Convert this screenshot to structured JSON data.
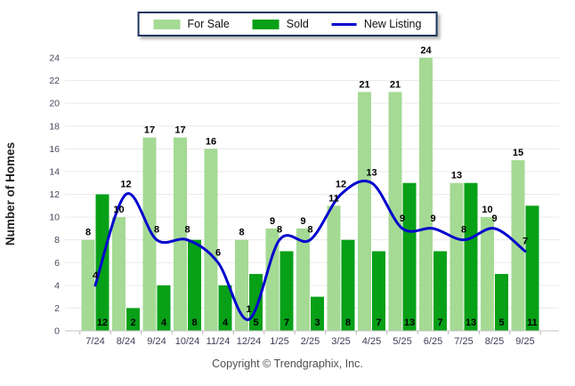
{
  "legend": {
    "items": [
      {
        "label": "For Sale",
        "swatch": "light-green-rect"
      },
      {
        "label": "Sold",
        "swatch": "dark-green-rect"
      },
      {
        "label": "New Listing",
        "swatch": "blue-line"
      }
    ]
  },
  "footer": {
    "copyright": "Copyright © Trendgraphix, Inc."
  },
  "colors": {
    "for_sale": "#a4da94",
    "sold": "#07a017",
    "new_listing": "#0101cd",
    "legend_border": "#1a355e",
    "grid": "#eaeaea",
    "axis": "#c4c4c4"
  },
  "chart_data": {
    "type": "bar",
    "title": "",
    "xlabel": "",
    "ylabel": "Number of Homes",
    "ylim": [
      0,
      24
    ],
    "y_ticks": [
      0,
      2,
      4,
      6,
      8,
      10,
      12,
      14,
      16,
      18,
      20,
      22,
      24
    ],
    "grid": true,
    "legend_position": "top-center",
    "categories": [
      "7/24",
      "8/24",
      "9/24",
      "10/24",
      "11/24",
      "12/24",
      "1/25",
      "2/25",
      "3/25",
      "4/25",
      "5/25",
      "6/25",
      "7/25",
      "8/25",
      "9/25"
    ],
    "series": [
      {
        "name": "For Sale",
        "type": "bar",
        "color": "#a4da94",
        "values": [
          8,
          10,
          17,
          17,
          16,
          8,
          9,
          9,
          11,
          21,
          21,
          24,
          13,
          10,
          15
        ]
      },
      {
        "name": "Sold",
        "type": "bar",
        "color": "#07a017",
        "values": [
          12,
          2,
          4,
          8,
          4,
          5,
          7,
          3,
          8,
          7,
          13,
          7,
          13,
          5,
          11
        ]
      },
      {
        "name": "New Listing",
        "type": "line",
        "color": "#0101cd",
        "values": [
          4,
          12,
          8,
          8,
          6,
          1,
          8,
          8,
          12,
          13,
          9,
          9,
          8,
          9,
          7
        ]
      }
    ],
    "value_label_placement": {
      "for_sale": "above bar top",
      "sold": "inside bar at bottom",
      "new_listing": "above line point"
    }
  }
}
